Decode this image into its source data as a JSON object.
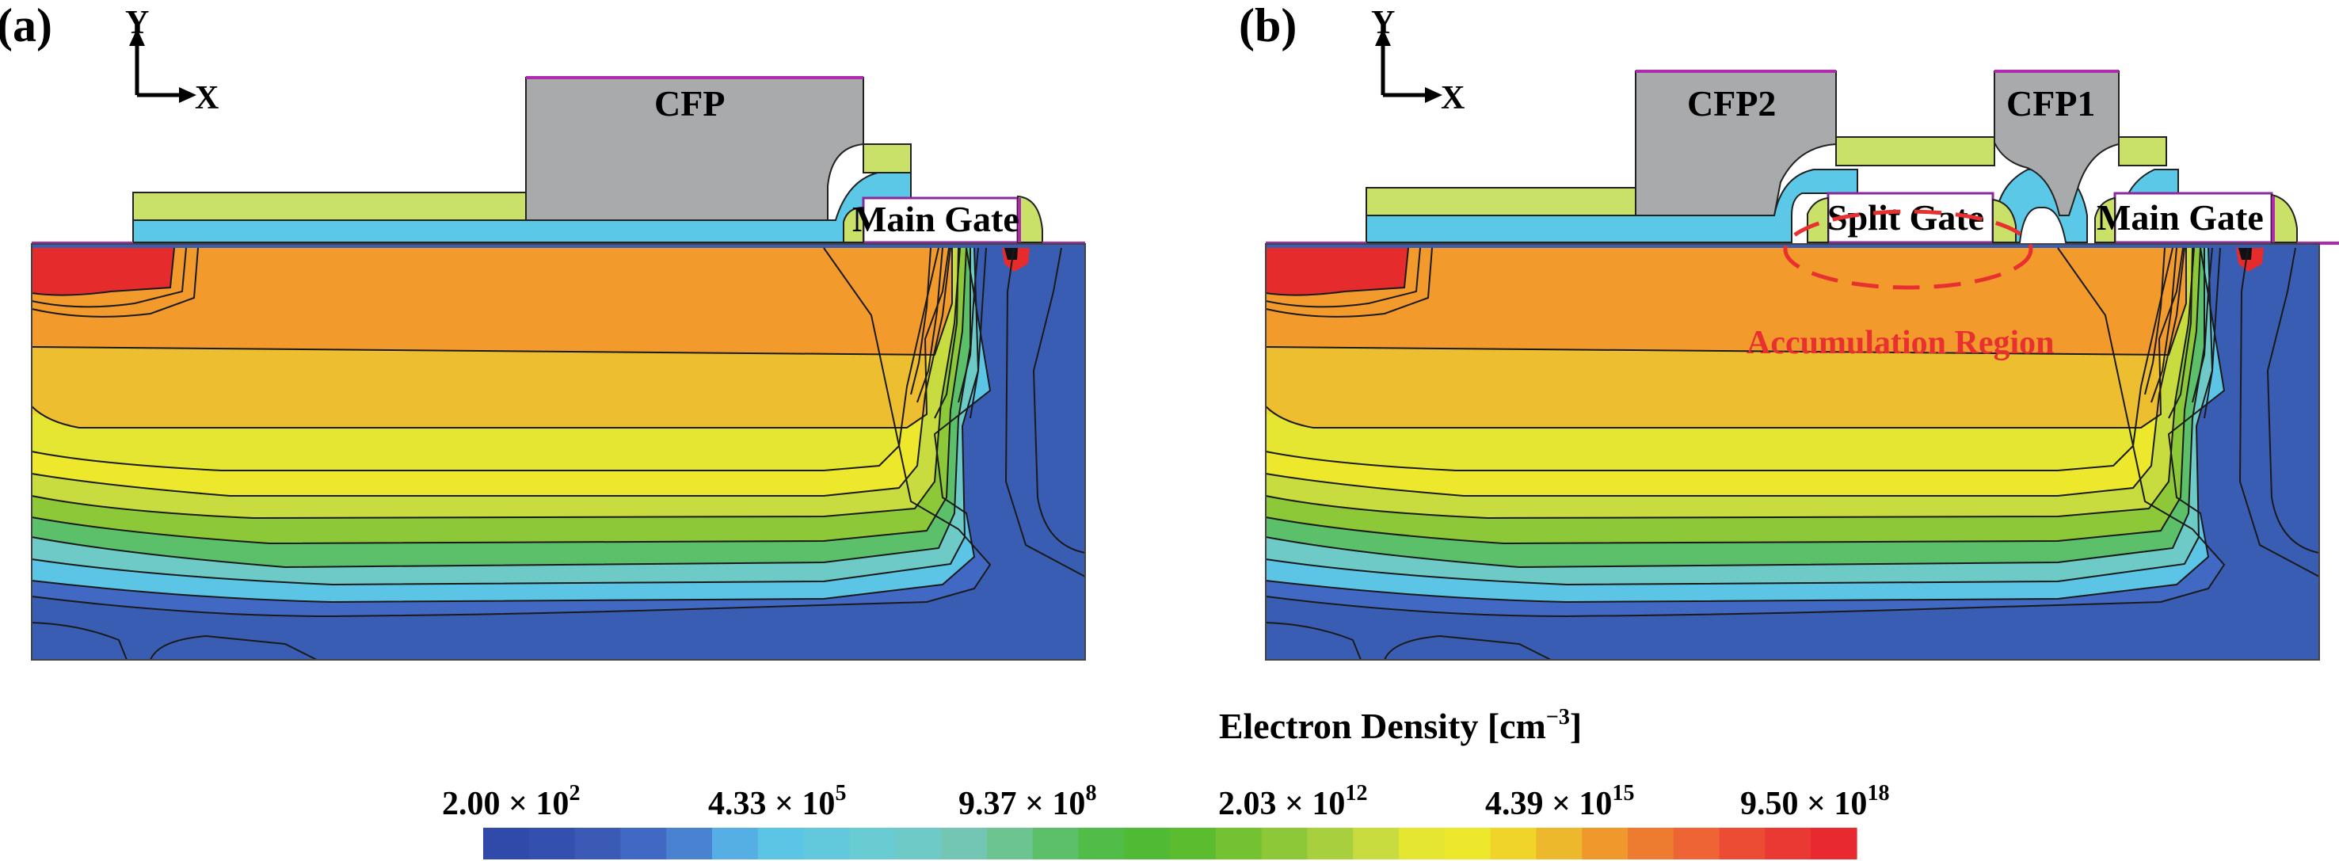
{
  "panels": [
    {
      "label": "(a)",
      "axis_y": "Y",
      "axis_x": "X",
      "structures": {
        "field_plate": "CFP",
        "main_gate": "Main Gate"
      }
    },
    {
      "label": "(b)",
      "axis_y": "Y",
      "axis_x": "X",
      "structures": {
        "field_plate_2": "CFP2",
        "field_plate_1": "CFP1",
        "split_gate": "Split Gate",
        "main_gate": "Main Gate"
      },
      "annotation": "Accumulation Region"
    }
  ],
  "colorbar": {
    "title_main": "Electron Density [cm",
    "title_exp": "−3",
    "title_close": "]",
    "ticks": [
      {
        "mant": "2.00 × 10",
        "exp": "2"
      },
      {
        "mant": "4.33 × 10",
        "exp": "5"
      },
      {
        "mant": "9.37 × 10",
        "exp": "8"
      },
      {
        "mant": "2.03 × 10",
        "exp": "12"
      },
      {
        "mant": "4.39 × 10",
        "exp": "15"
      },
      {
        "mant": "9.50 × 10",
        "exp": "18"
      }
    ],
    "colors": [
      "#2f4aa8",
      "#3350ae",
      "#3a5ab6",
      "#4168c2",
      "#4a82d2",
      "#55aee4",
      "#5cc4e4",
      "#62c8dc",
      "#68ccd2",
      "#6ecac6",
      "#74c6b4",
      "#6cc590",
      "#5cc06a",
      "#52bc48",
      "#50ba34",
      "#5cbc30",
      "#74c232",
      "#8cc838",
      "#a8d03e",
      "#c8dc40",
      "#e4e632",
      "#eee82c",
      "#f0d42a",
      "#eeb82c",
      "#f0982c",
      "#ee7c30",
      "#ee6434",
      "#ec4c34",
      "#ea3832",
      "#e82a30"
    ]
  },
  "colors": {
    "substrate_blue": "#3a5db4",
    "orange": "#f39a2d",
    "gold": "#edbe2f",
    "red": "#e62b2d",
    "field_plate_gray": "#a9aaab",
    "passivation_cyan": "#5ac8e6",
    "dielectric_lime": "#c9e169",
    "annotation_red": "#e83030"
  }
}
